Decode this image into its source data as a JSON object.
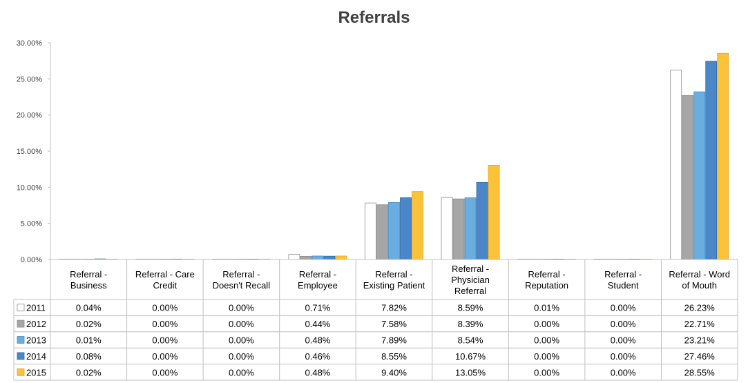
{
  "chart_data": {
    "type": "bar",
    "title": "Referrals",
    "xlabel": "",
    "ylabel": "",
    "ylim": [
      0,
      30
    ],
    "yticks": [
      "0.00%",
      "5.00%",
      "10.00%",
      "15.00%",
      "20.00%",
      "25.00%",
      "30.00%"
    ],
    "grid": false,
    "legend_position": "data-table-left",
    "categories": [
      [
        "Referral -",
        "Business"
      ],
      [
        "Referral - Care",
        "Credit"
      ],
      [
        "Referral -",
        "Doesn't Recall"
      ],
      [
        "Referral -",
        "Employee"
      ],
      [
        "Referral -",
        "Existing Patient"
      ],
      [
        "Referral -",
        "Physician",
        "Referral"
      ],
      [
        "Referral -",
        "Reputation"
      ],
      [
        "Referral -",
        "Student"
      ],
      [
        "Referral - Word",
        "of Mouth"
      ]
    ],
    "series": [
      {
        "name": "2011",
        "color": "#ffffff",
        "stroke": "#8c8c8c",
        "values": [
          0.04,
          0.0,
          0.0,
          0.71,
          7.82,
          8.59,
          0.01,
          0.0,
          26.23
        ],
        "labels": [
          "0.04%",
          "0.00%",
          "0.00%",
          "0.71%",
          "7.82%",
          "8.59%",
          "0.01%",
          "0.00%",
          "26.23%"
        ]
      },
      {
        "name": "2012",
        "color": "#a6a6a6",
        "stroke": "#8c8c8c",
        "values": [
          0.02,
          0.0,
          0.0,
          0.44,
          7.58,
          8.39,
          0.0,
          0.0,
          22.71
        ],
        "labels": [
          "0.02%",
          "0.00%",
          "0.00%",
          "0.44%",
          "7.58%",
          "8.39%",
          "0.00%",
          "0.00%",
          "22.71%"
        ]
      },
      {
        "name": "2013",
        "color": "#6aaee0",
        "stroke": "#4a8cc0",
        "values": [
          0.01,
          0.0,
          0.0,
          0.48,
          7.89,
          8.54,
          0.0,
          0.0,
          23.21
        ],
        "labels": [
          "0.01%",
          "0.00%",
          "0.00%",
          "0.48%",
          "7.89%",
          "8.54%",
          "0.00%",
          "0.00%",
          "23.21%"
        ]
      },
      {
        "name": "2014",
        "color": "#4a86c8",
        "stroke": "#2f6aa8",
        "values": [
          0.08,
          0.0,
          0.0,
          0.46,
          8.55,
          10.67,
          0.0,
          0.0,
          27.46
        ],
        "labels": [
          "0.08%",
          "0.00%",
          "0.00%",
          "0.46%",
          "8.55%",
          "10.67%",
          "0.00%",
          "0.00%",
          "27.46%"
        ]
      },
      {
        "name": "2015",
        "color": "#fcc23a",
        "stroke": "#e0a820",
        "values": [
          0.02,
          0.0,
          0.0,
          0.48,
          9.4,
          13.05,
          0.0,
          0.0,
          28.55
        ],
        "labels": [
          "0.02%",
          "0.00%",
          "0.00%",
          "0.48%",
          "9.40%",
          "13.05%",
          "0.00%",
          "0.00%",
          "28.55%"
        ]
      }
    ]
  }
}
